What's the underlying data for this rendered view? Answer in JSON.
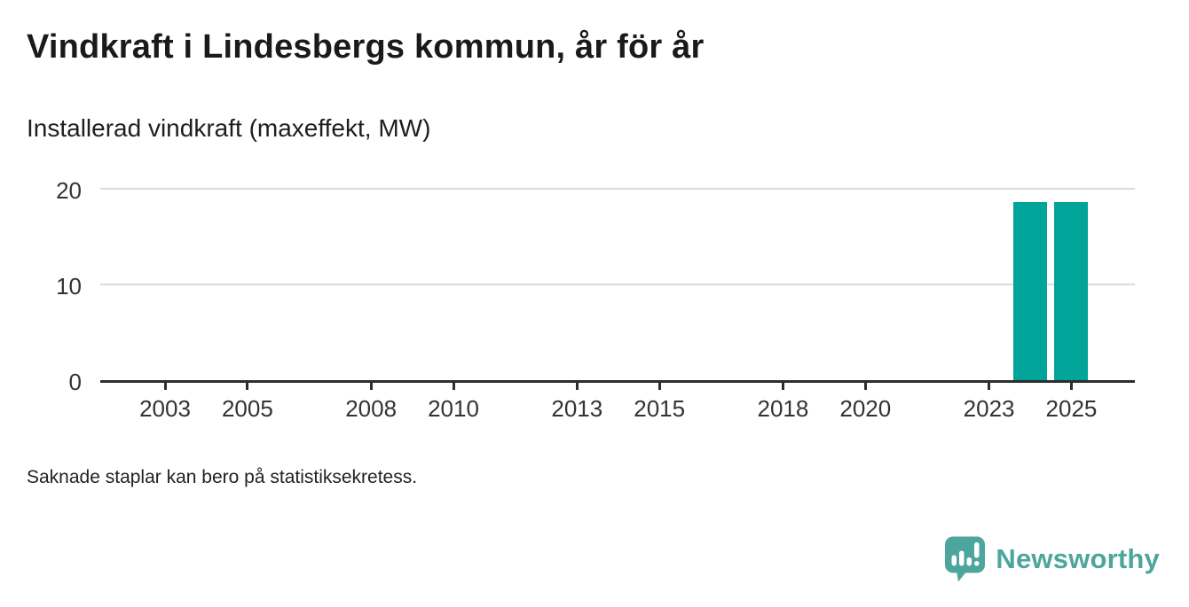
{
  "chart_data": {
    "type": "bar",
    "title": "Vindkraft i Lindesbergs kommun, år för år",
    "subtitle": "Installerad vindkraft (maxeffekt, MW)",
    "note": "Saknade staplar kan bero på statistiksekretess.",
    "x": [
      2024,
      2025
    ],
    "values": [
      18.6,
      18.6
    ],
    "series": [
      {
        "name": "Installerad vindkraft (maxeffekt, MW)",
        "x": [
          2024,
          2025
        ],
        "values": [
          18.6,
          18.6
        ]
      }
    ],
    "x_ticks": [
      2003,
      2005,
      2008,
      2010,
      2013,
      2015,
      2018,
      2020,
      2023,
      2025
    ],
    "y_ticks": [
      0,
      10,
      20
    ],
    "xlim": [
      2001.5,
      2026.5
    ],
    "ylim": [
      0,
      20
    ],
    "grid": "horizontal",
    "legend": "none",
    "bar_color": "#00a499",
    "axis_color": "#2d2d2d",
    "gridline_color": "#dbdbdb",
    "tick_label_color": "#333333"
  },
  "logo": {
    "brand": "Newsworthy",
    "icon": "speech-bubble-with-bar-chart-and-exclamation",
    "color": "#4da69d"
  }
}
